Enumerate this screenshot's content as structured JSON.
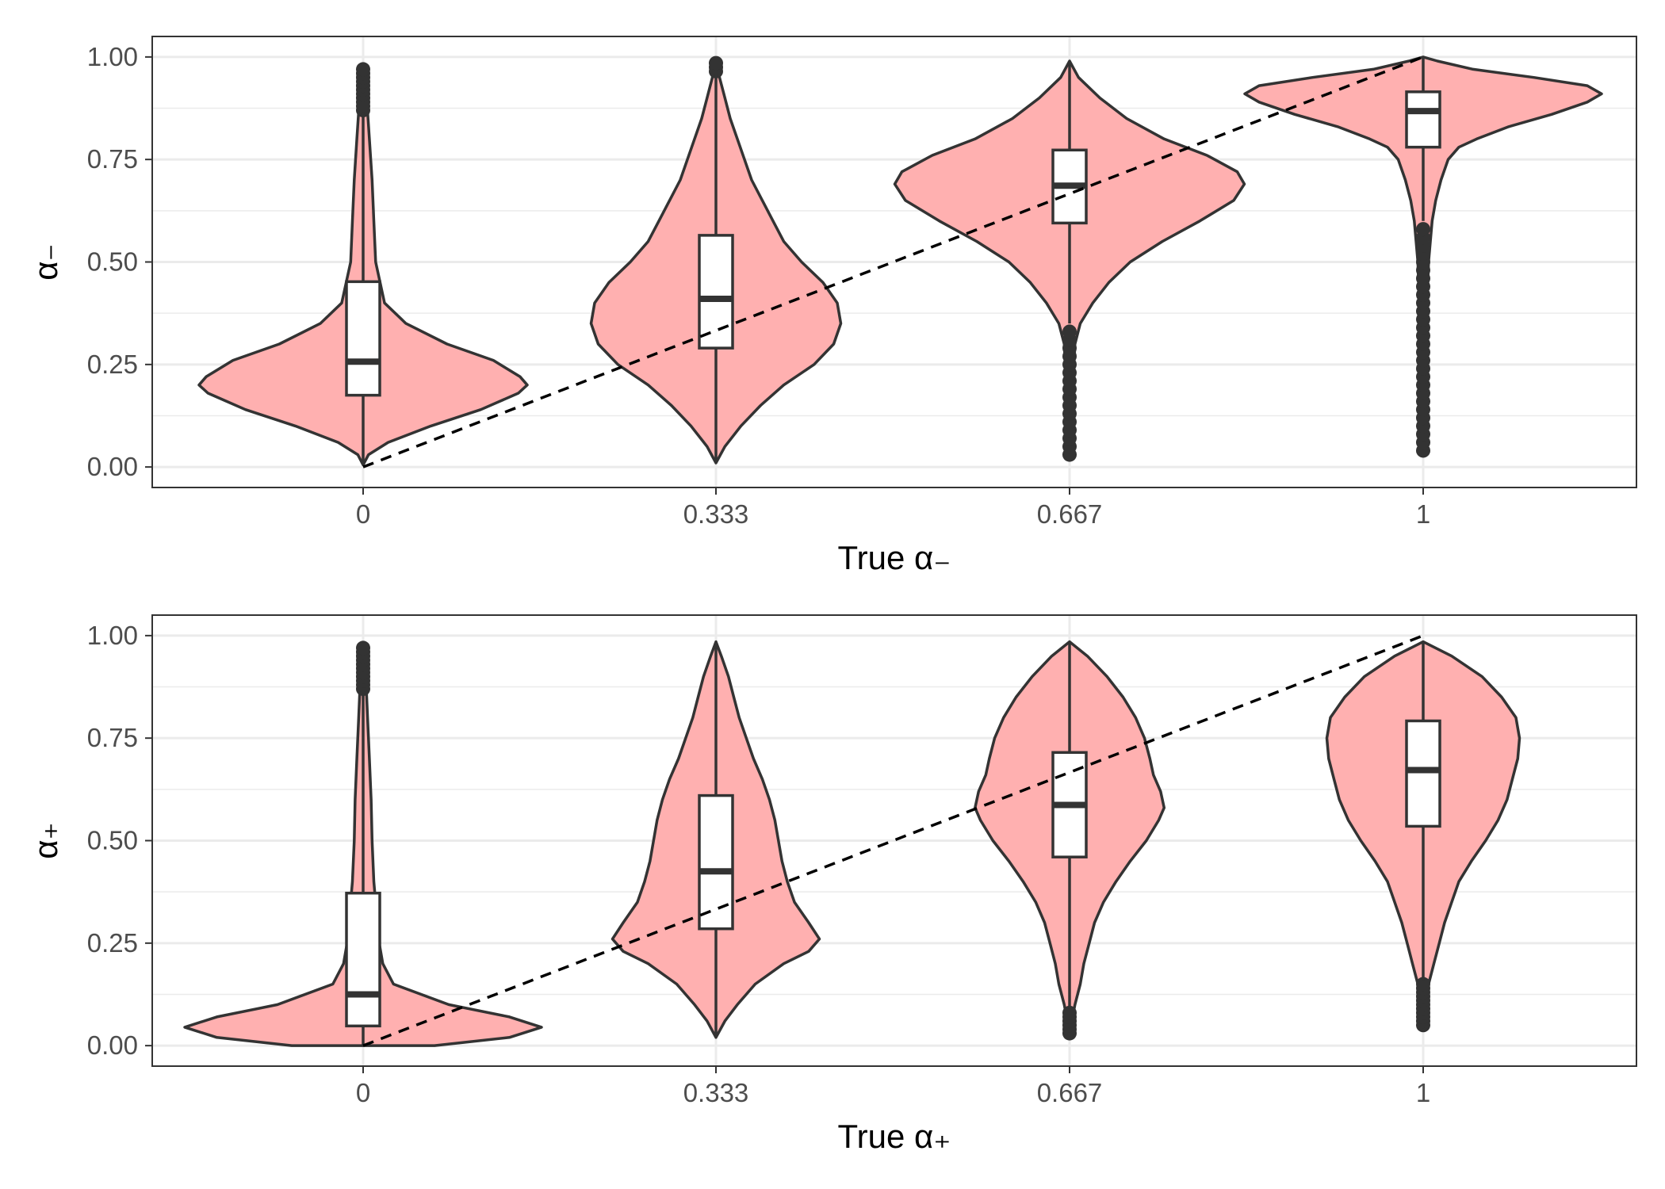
{
  "chart_data": [
    {
      "type": "violin",
      "panel": "top",
      "xlabel": "True α₋",
      "ylabel": "α₋",
      "categories": [
        "0",
        "0.333",
        "0.667",
        "1"
      ],
      "x": [
        0,
        0.333,
        0.667,
        1
      ],
      "ylim": [
        -0.05,
        1.05
      ],
      "yticks": [
        0,
        0.25,
        0.5,
        0.75,
        1
      ],
      "ytick_labels": [
        "0.00",
        "0.25",
        "0.50",
        "0.75",
        "1.00"
      ],
      "identity_line": {
        "style": "dashed",
        "from": [
          0,
          0
        ],
        "to": [
          1,
          1
        ]
      },
      "violins": [
        {
          "category": "0",
          "box": {
            "q1": 0.175,
            "median": 0.257,
            "q3": 0.452
          },
          "whisker": [
            0.005,
            0.865
          ],
          "outliers": [
            0.87,
            0.88,
            0.89,
            0.9,
            0.91,
            0.92,
            0.93,
            0.94,
            0.95,
            0.96,
            0.97
          ],
          "profile": [
            [
              0.005,
              0.0
            ],
            [
              0.03,
              0.03
            ],
            [
              0.06,
              0.14
            ],
            [
              0.1,
              0.38
            ],
            [
              0.14,
              0.66
            ],
            [
              0.18,
              0.87
            ],
            [
              0.2,
              0.92
            ],
            [
              0.22,
              0.88
            ],
            [
              0.26,
              0.73
            ],
            [
              0.3,
              0.47
            ],
            [
              0.35,
              0.24
            ],
            [
              0.4,
              0.12
            ],
            [
              0.5,
              0.07
            ],
            [
              0.6,
              0.06
            ],
            [
              0.7,
              0.05
            ],
            [
              0.8,
              0.035
            ],
            [
              0.9,
              0.02
            ],
            [
              0.975,
              0.0
            ]
          ]
        },
        {
          "category": "0.333",
          "box": {
            "q1": 0.29,
            "median": 0.41,
            "q3": 0.565
          },
          "whisker": [
            0.01,
            0.96
          ],
          "outliers": [
            0.965,
            0.975,
            0.985
          ],
          "profile": [
            [
              0.01,
              0.0
            ],
            [
              0.05,
              0.05
            ],
            [
              0.1,
              0.14
            ],
            [
              0.15,
              0.25
            ],
            [
              0.2,
              0.38
            ],
            [
              0.25,
              0.55
            ],
            [
              0.3,
              0.66
            ],
            [
              0.35,
              0.7
            ],
            [
              0.4,
              0.68
            ],
            [
              0.45,
              0.6
            ],
            [
              0.5,
              0.48
            ],
            [
              0.55,
              0.38
            ],
            [
              0.6,
              0.32
            ],
            [
              0.65,
              0.26
            ],
            [
              0.7,
              0.2
            ],
            [
              0.75,
              0.16
            ],
            [
              0.8,
              0.12
            ],
            [
              0.85,
              0.08
            ],
            [
              0.9,
              0.05
            ],
            [
              0.95,
              0.02
            ],
            [
              0.99,
              0.0
            ]
          ]
        },
        {
          "category": "0.667",
          "box": {
            "q1": 0.595,
            "median": 0.686,
            "q3": 0.773
          },
          "whisker": [
            0.35,
            0.99
          ],
          "outliers": [
            0.03,
            0.05,
            0.07,
            0.09,
            0.11,
            0.13,
            0.15,
            0.17,
            0.19,
            0.21,
            0.23,
            0.25,
            0.27,
            0.29,
            0.31,
            0.33
          ],
          "profile": [
            [
              0.03,
              0.0
            ],
            [
              0.2,
              0.02
            ],
            [
              0.3,
              0.03
            ],
            [
              0.35,
              0.06
            ],
            [
              0.4,
              0.13
            ],
            [
              0.45,
              0.22
            ],
            [
              0.5,
              0.34
            ],
            [
              0.55,
              0.52
            ],
            [
              0.6,
              0.73
            ],
            [
              0.65,
              0.92
            ],
            [
              0.69,
              0.98
            ],
            [
              0.72,
              0.94
            ],
            [
              0.76,
              0.77
            ],
            [
              0.8,
              0.53
            ],
            [
              0.85,
              0.32
            ],
            [
              0.9,
              0.17
            ],
            [
              0.95,
              0.05
            ],
            [
              0.99,
              0.0
            ]
          ]
        },
        {
          "category": "1",
          "box": {
            "q1": 0.78,
            "median": 0.868,
            "q3": 0.915
          },
          "whisker": [
            0.6,
            1.0
          ],
          "outliers": [
            0.04,
            0.06,
            0.08,
            0.1,
            0.12,
            0.14,
            0.16,
            0.18,
            0.2,
            0.22,
            0.24,
            0.26,
            0.28,
            0.3,
            0.32,
            0.34,
            0.36,
            0.38,
            0.4,
            0.42,
            0.44,
            0.46,
            0.48,
            0.5,
            0.52,
            0.54,
            0.56,
            0.58
          ],
          "profile": [
            [
              0.04,
              0.0
            ],
            [
              0.3,
              0.015
            ],
            [
              0.5,
              0.03
            ],
            [
              0.6,
              0.05
            ],
            [
              0.65,
              0.07
            ],
            [
              0.7,
              0.1
            ],
            [
              0.75,
              0.14
            ],
            [
              0.78,
              0.2
            ],
            [
              0.8,
              0.3
            ],
            [
              0.83,
              0.48
            ],
            [
              0.86,
              0.72
            ],
            [
              0.89,
              0.92
            ],
            [
              0.91,
              1.0
            ],
            [
              0.93,
              0.92
            ],
            [
              0.95,
              0.62
            ],
            [
              0.97,
              0.28
            ],
            [
              0.99,
              0.08
            ],
            [
              1.0,
              0.0
            ]
          ]
        }
      ]
    },
    {
      "type": "violin",
      "panel": "bottom",
      "xlabel": "True α₊",
      "ylabel": "α₊",
      "categories": [
        "0",
        "0.333",
        "0.667",
        "1"
      ],
      "x": [
        0,
        0.333,
        0.667,
        1
      ],
      "ylim": [
        -0.05,
        1.05
      ],
      "yticks": [
        0,
        0.25,
        0.5,
        0.75,
        1
      ],
      "ytick_labels": [
        "0.00",
        "0.25",
        "0.50",
        "0.75",
        "1.00"
      ],
      "identity_line": {
        "style": "dashed",
        "from": [
          0,
          0
        ],
        "to": [
          1,
          1
        ]
      },
      "violins": [
        {
          "category": "0",
          "box": {
            "q1": 0.048,
            "median": 0.125,
            "q3": 0.372
          },
          "whisker": [
            0.0,
            0.86
          ],
          "outliers": [
            0.87,
            0.88,
            0.89,
            0.9,
            0.91,
            0.92,
            0.93,
            0.94,
            0.95,
            0.96,
            0.97
          ],
          "profile": [
            [
              0.0,
              0.4
            ],
            [
              0.02,
              0.82
            ],
            [
              0.045,
              1.0
            ],
            [
              0.07,
              0.82
            ],
            [
              0.1,
              0.48
            ],
            [
              0.15,
              0.17
            ],
            [
              0.2,
              0.11
            ],
            [
              0.25,
              0.09
            ],
            [
              0.3,
              0.08
            ],
            [
              0.4,
              0.06
            ],
            [
              0.5,
              0.05
            ],
            [
              0.6,
              0.045
            ],
            [
              0.7,
              0.035
            ],
            [
              0.8,
              0.025
            ],
            [
              0.9,
              0.015
            ],
            [
              0.975,
              0.0
            ]
          ]
        },
        {
          "category": "0.333",
          "box": {
            "q1": 0.285,
            "median": 0.425,
            "q3": 0.61
          },
          "whisker": [
            0.02,
            0.975
          ],
          "outliers": [],
          "profile": [
            [
              0.02,
              0.0
            ],
            [
              0.06,
              0.05
            ],
            [
              0.1,
              0.12
            ],
            [
              0.15,
              0.22
            ],
            [
              0.2,
              0.38
            ],
            [
              0.23,
              0.52
            ],
            [
              0.26,
              0.58
            ],
            [
              0.3,
              0.52
            ],
            [
              0.35,
              0.44
            ],
            [
              0.4,
              0.4
            ],
            [
              0.45,
              0.37
            ],
            [
              0.5,
              0.35
            ],
            [
              0.55,
              0.33
            ],
            [
              0.6,
              0.3
            ],
            [
              0.65,
              0.26
            ],
            [
              0.7,
              0.21
            ],
            [
              0.75,
              0.17
            ],
            [
              0.8,
              0.13
            ],
            [
              0.85,
              0.1
            ],
            [
              0.9,
              0.07
            ],
            [
              0.95,
              0.03
            ],
            [
              0.985,
              0.0
            ]
          ]
        },
        {
          "category": "0.667",
          "box": {
            "q1": 0.46,
            "median": 0.587,
            "q3": 0.715
          },
          "whisker": [
            0.09,
            0.985
          ],
          "outliers": [
            0.03,
            0.04,
            0.05,
            0.06,
            0.07,
            0.08
          ],
          "profile": [
            [
              0.03,
              0.0
            ],
            [
              0.1,
              0.03
            ],
            [
              0.15,
              0.06
            ],
            [
              0.2,
              0.08
            ],
            [
              0.25,
              0.11
            ],
            [
              0.3,
              0.14
            ],
            [
              0.35,
              0.19
            ],
            [
              0.4,
              0.26
            ],
            [
              0.45,
              0.34
            ],
            [
              0.5,
              0.43
            ],
            [
              0.55,
              0.5
            ],
            [
              0.58,
              0.53
            ],
            [
              0.62,
              0.51
            ],
            [
              0.66,
              0.47
            ],
            [
              0.7,
              0.45
            ],
            [
              0.75,
              0.42
            ],
            [
              0.8,
              0.37
            ],
            [
              0.85,
              0.3
            ],
            [
              0.9,
              0.21
            ],
            [
              0.95,
              0.1
            ],
            [
              0.985,
              0.0
            ]
          ]
        },
        {
          "category": "1",
          "box": {
            "q1": 0.535,
            "median": 0.672,
            "q3": 0.792
          },
          "whisker": [
            0.16,
            0.985
          ],
          "outliers": [
            0.05,
            0.06,
            0.07,
            0.08,
            0.09,
            0.1,
            0.11,
            0.12,
            0.13,
            0.14,
            0.15
          ],
          "profile": [
            [
              0.05,
              0.0
            ],
            [
              0.15,
              0.03
            ],
            [
              0.2,
              0.06
            ],
            [
              0.25,
              0.09
            ],
            [
              0.3,
              0.12
            ],
            [
              0.35,
              0.16
            ],
            [
              0.4,
              0.2
            ],
            [
              0.45,
              0.27
            ],
            [
              0.5,
              0.35
            ],
            [
              0.55,
              0.42
            ],
            [
              0.6,
              0.47
            ],
            [
              0.65,
              0.5
            ],
            [
              0.7,
              0.53
            ],
            [
              0.75,
              0.54
            ],
            [
              0.8,
              0.52
            ],
            [
              0.85,
              0.44
            ],
            [
              0.9,
              0.33
            ],
            [
              0.95,
              0.16
            ],
            [
              0.985,
              0.0
            ]
          ]
        }
      ]
    }
  ]
}
